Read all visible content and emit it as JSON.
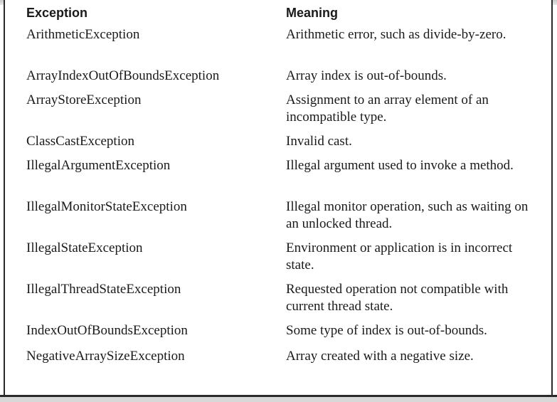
{
  "table": {
    "headers": {
      "exception": "Exception",
      "meaning": "Meaning"
    },
    "rows": [
      {
        "name": "ArithmeticException",
        "meaning": "Arithmetic error, such as divide-by-zero."
      },
      {
        "name": "ArrayIndexOutOfBoundsException",
        "meaning": "Array index is out-of-bounds."
      },
      {
        "name": "ArrayStoreException",
        "meaning": "Assignment to an array element of an incompatible type."
      },
      {
        "name": "ClassCastException",
        "meaning": "Invalid cast."
      },
      {
        "name": "IllegalArgumentException",
        "meaning": "Illegal argument used to invoke a method."
      },
      {
        "name": "IllegalMonitorStateException",
        "meaning": "Illegal monitor operation, such as waiting on an unlocked thread."
      },
      {
        "name": "IllegalStateException",
        "meaning": "Environment or application is in incorrect state."
      },
      {
        "name": "IllegalThreadStateException",
        "meaning": "Requested operation not compatible with current thread state."
      },
      {
        "name": "IndexOutOfBoundsException",
        "meaning": "Some type of index is out-of-bounds."
      },
      {
        "name": "NegativeArraySizeException",
        "meaning": "Array created with a negative size."
      }
    ]
  }
}
